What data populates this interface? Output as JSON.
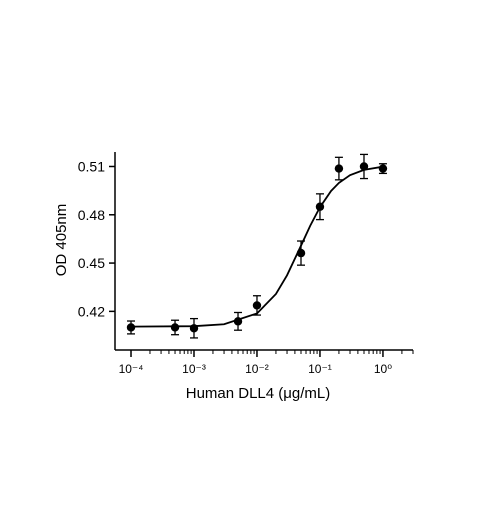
{
  "chart_data": {
    "type": "scatter",
    "xlabel": "Human DLL4 (μg/mL)",
    "ylabel": "OD 405nm",
    "xscale": "log",
    "color": "#000000",
    "x": [
      0.0001,
      0.0005,
      0.001,
      0.005,
      0.01,
      0.05,
      0.1,
      0.2,
      0.5,
      1
    ],
    "values": [
      0.41,
      0.41,
      0.4095,
      0.4138,
      0.4237,
      0.4562,
      0.485,
      0.5087,
      0.51,
      0.5087
    ],
    "errors": [
      0.004,
      0.0045,
      0.006,
      0.0055,
      0.006,
      0.0075,
      0.008,
      0.007,
      0.0075,
      0.003
    ],
    "curve": {
      "x": [
        0.0001,
        0.001,
        0.003,
        0.01,
        0.02,
        0.03,
        0.05,
        0.07,
        0.1,
        0.15,
        0.2,
        0.3,
        0.5,
        1
      ],
      "values": [
        0.4105,
        0.4108,
        0.412,
        0.4187,
        0.4308,
        0.4424,
        0.4608,
        0.4732,
        0.4847,
        0.4948,
        0.4998,
        0.5046,
        0.5079,
        0.5099
      ]
    },
    "xlim": [
      5.57e-05,
      3.0
    ],
    "ylim": [
      0.396,
      0.519
    ],
    "xticks": [
      {
        "value": 0.0001,
        "label": "10⁻⁴"
      },
      {
        "value": 0.001,
        "label": "10⁻³"
      },
      {
        "value": 0.01,
        "label": "10⁻²"
      },
      {
        "value": 0.1,
        "label": "10⁻¹"
      },
      {
        "value": 1,
        "label": "10⁰"
      }
    ],
    "xminorticks": [
      0.0002,
      0.0003,
      0.0004,
      0.0005,
      0.0006,
      0.0007,
      0.0008,
      0.0009,
      0.002,
      0.003,
      0.004,
      0.005,
      0.006,
      0.007,
      0.008,
      0.009,
      0.02,
      0.03,
      0.04,
      0.05,
      0.06,
      0.07,
      0.08,
      0.09,
      0.2,
      0.3,
      0.4,
      0.5,
      0.6,
      0.7,
      0.8,
      0.9,
      2,
      3
    ],
    "yticks": [
      0.42,
      0.45,
      0.48,
      0.51
    ]
  }
}
